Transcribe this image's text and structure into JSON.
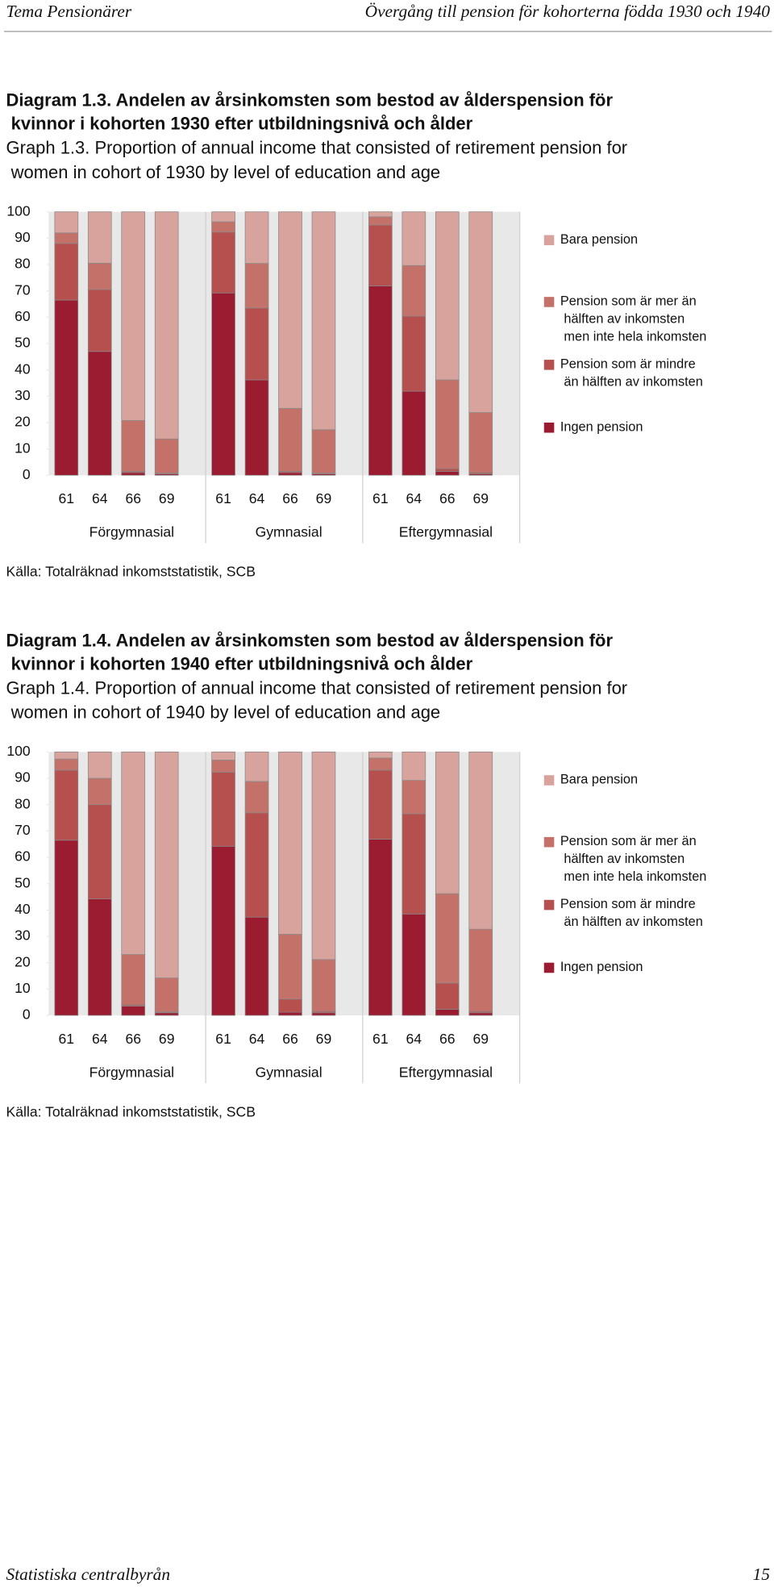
{
  "header": {
    "left": "Tema Pensionärer",
    "right": "Övergång till pension för kohorterna födda 1930 och 1940"
  },
  "chart_data": [
    {
      "type": "bar",
      "stacked": true,
      "title": "Diagram 1.3. Andelen av årsinkomsten som bestod av ålderspension för kvinnor i kohorten 1930 efter utbildningsnivå och ålder",
      "subtitle": "Graph 1.3. Proportion of annual income that consisted of retirement pension for women in cohort of 1930 by level of education and age",
      "categories": [
        "61",
        "64",
        "66",
        "69",
        "61",
        "64",
        "66",
        "69",
        "61",
        "64",
        "66",
        "69"
      ],
      "groups": [
        "Förgymnasial",
        "Gymnasial",
        "Eftergymnasial"
      ],
      "ylim": [
        0,
        100
      ],
      "yticks": [
        0,
        10,
        20,
        30,
        40,
        50,
        60,
        70,
        80,
        90,
        100
      ],
      "legend": "right",
      "series": [
        {
          "name": "Ingen pension",
          "color": "#9b1c31",
          "values": [
            66.5,
            47,
            1,
            0.5,
            69.2,
            36.2,
            1,
            0.5,
            71.9,
            31.9,
            1.5,
            0.5
          ]
        },
        {
          "name": "Pension som är mindre än hälften av inkomsten",
          "color": "#b5504f",
          "values": [
            21.5,
            23.5,
            0.5,
            0.3,
            23.1,
            27.3,
            0.5,
            0.3,
            23.1,
            28.5,
            1,
            0.5
          ]
        },
        {
          "name": "Pension som är mer än hälften av inkomsten men inte hela inkomsten",
          "color": "#c4716a",
          "values": [
            4,
            10,
            19.3,
            13,
            3.9,
            16.9,
            23.9,
            16.5,
            3.1,
            19.2,
            33.7,
            22.8
          ]
        },
        {
          "name": "Bara pension",
          "color": "#d8a39c",
          "values": [
            8,
            19.5,
            79.2,
            86.2,
            3.8,
            19.6,
            74.6,
            82.7,
            1.9,
            20.4,
            63.8,
            76.2
          ]
        }
      ],
      "source": "Källa: Totalräknad inkomststatistik, SCB"
    },
    {
      "type": "bar",
      "stacked": true,
      "title": "Diagram 1.4. Andelen av årsinkomsten som bestod av ålderspension för kvinnor i kohorten 1940 efter utbildningsnivå och ålder",
      "subtitle": "Graph 1.4. Proportion of annual income that consisted of retirement pension for women in cohort of 1940 by level of education and age",
      "categories": [
        "61",
        "64",
        "66",
        "69",
        "61",
        "64",
        "66",
        "69",
        "61",
        "64",
        "66",
        "69"
      ],
      "groups": [
        "Förgymnasial",
        "Gymnasial",
        "Eftergymnasial"
      ],
      "ylim": [
        0,
        100
      ],
      "yticks": [
        0,
        10,
        20,
        30,
        40,
        50,
        60,
        70,
        80,
        90,
        100
      ],
      "legend": "right",
      "series": [
        {
          "name": "Ingen pension",
          "color": "#9b1c31",
          "values": [
            66.5,
            44.2,
            3.5,
            1,
            64.2,
            37.3,
            1.2,
            1,
            66.9,
            38.5,
            2.3,
            1
          ]
        },
        {
          "name": "Pension som är mindre än hälften av inkomsten",
          "color": "#b5504f",
          "values": [
            26.6,
            35.8,
            0.5,
            0.3,
            28.1,
            39.6,
            5,
            0.5,
            26.2,
            38,
            10,
            0.5
          ]
        },
        {
          "name": "Pension som är mer än hälften av inkomsten men inte hela inkomsten",
          "color": "#c4716a",
          "values": [
            4.2,
            10,
            19.1,
            12.9,
            4.6,
            11.9,
            24.6,
            19.7,
            4.6,
            12.7,
            33.9,
            31.2
          ]
        },
        {
          "name": "Bara pension",
          "color": "#d8a39c",
          "values": [
            2.7,
            10,
            76.9,
            85.8,
            3.1,
            11.2,
            69.2,
            78.8,
            2.3,
            10.8,
            53.8,
            67.3
          ]
        }
      ],
      "source": "Källa: Totalräknad inkomststatistik, SCB"
    }
  ],
  "footer": {
    "left": "Statistiska centralbyrån",
    "page": "15"
  }
}
